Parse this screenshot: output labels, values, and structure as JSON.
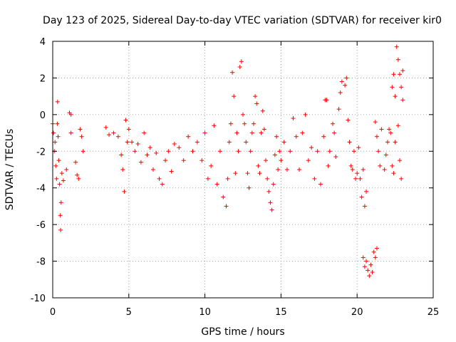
{
  "chart_data": {
    "type": "scatter",
    "title": "Day 123 of 2025, Sidereal Day-to-day VTEC variation (SDTVAR) for receiver kir0",
    "xlabel": "GPS time / hours",
    "ylabel": "SDTVAR / TECUs",
    "xlim": [
      0,
      25
    ],
    "ylim": [
      -10,
      4
    ],
    "xticks": [
      0,
      5,
      10,
      15,
      20,
      25
    ],
    "xtick_labels": [
      "0",
      "5",
      "10",
      "15",
      "20",
      "25"
    ],
    "yticks": [
      -10,
      -8,
      -6,
      -4,
      -2,
      0,
      2,
      4
    ],
    "ytick_labels": [
      "-10",
      "-8",
      "-6",
      "-4",
      "-2",
      "0",
      "2",
      "4"
    ],
    "grid": true,
    "marker": "+",
    "color": "#ff0000",
    "series": [
      {
        "name": "kir0",
        "points": [
          [
            0.0,
            -0.5
          ],
          [
            0.05,
            -1.0
          ],
          [
            0.1,
            -2.0
          ],
          [
            0.15,
            -1.5
          ],
          [
            0.2,
            -2.8
          ],
          [
            0.25,
            -3.5
          ],
          [
            0.3,
            -0.5
          ],
          [
            0.32,
            0.7
          ],
          [
            0.35,
            -1.2
          ],
          [
            0.4,
            -2.5
          ],
          [
            0.45,
            -3.8
          ],
          [
            0.5,
            -5.5
          ],
          [
            0.52,
            -6.3
          ],
          [
            0.55,
            -4.8
          ],
          [
            0.6,
            -3.2
          ],
          [
            0.7,
            -3.6
          ],
          [
            0.9,
            -3.0
          ],
          [
            1.1,
            0.1
          ],
          [
            1.2,
            0.0
          ],
          [
            1.2,
            -1.0
          ],
          [
            1.5,
            -2.6
          ],
          [
            1.6,
            -3.3
          ],
          [
            1.7,
            -3.5
          ],
          [
            1.8,
            -0.8
          ],
          [
            1.9,
            -1.2
          ],
          [
            2.0,
            -2.0
          ],
          [
            3.5,
            -0.7
          ],
          [
            3.7,
            -1.1
          ],
          [
            4.0,
            -1.0
          ],
          [
            4.3,
            -1.2
          ],
          [
            4.5,
            -2.2
          ],
          [
            4.6,
            -3.0
          ],
          [
            4.7,
            -4.2
          ],
          [
            4.8,
            -0.3
          ],
          [
            4.9,
            -1.5
          ],
          [
            5.0,
            -0.8
          ],
          [
            5.2,
            -1.5
          ],
          [
            5.4,
            -2.0
          ],
          [
            5.6,
            -1.6
          ],
          [
            5.8,
            -2.6
          ],
          [
            6.0,
            -1.0
          ],
          [
            6.2,
            -2.2
          ],
          [
            6.4,
            -1.8
          ],
          [
            6.6,
            -3.0
          ],
          [
            6.8,
            -2.1
          ],
          [
            7.0,
            -3.5
          ],
          [
            7.2,
            -3.8
          ],
          [
            7.4,
            -2.5
          ],
          [
            7.6,
            -2.0
          ],
          [
            7.8,
            -3.1
          ],
          [
            8.0,
            -1.6
          ],
          [
            8.3,
            -1.8
          ],
          [
            8.6,
            -2.5
          ],
          [
            8.9,
            -1.2
          ],
          [
            9.2,
            -2.0
          ],
          [
            9.5,
            -1.5
          ],
          [
            9.8,
            -2.5
          ],
          [
            10.0,
            -1.0
          ],
          [
            10.2,
            -3.5
          ],
          [
            10.4,
            -2.8
          ],
          [
            10.6,
            -0.6
          ],
          [
            10.8,
            -3.8
          ],
          [
            11.0,
            -2.0
          ],
          [
            11.2,
            -4.5
          ],
          [
            11.4,
            -5.0
          ],
          [
            11.5,
            -3.5
          ],
          [
            11.6,
            -1.5
          ],
          [
            11.7,
            -0.5
          ],
          [
            11.8,
            2.3
          ],
          [
            11.9,
            1.0
          ],
          [
            12.0,
            -3.2
          ],
          [
            12.1,
            -1.0
          ],
          [
            12.2,
            -2.0
          ],
          [
            12.3,
            2.6
          ],
          [
            12.4,
            2.9
          ],
          [
            12.5,
            0.0
          ],
          [
            12.6,
            -0.5
          ],
          [
            12.7,
            -1.5
          ],
          [
            12.8,
            -3.2
          ],
          [
            12.9,
            -4.0
          ],
          [
            13.0,
            -2.0
          ],
          [
            13.1,
            -1.0
          ],
          [
            13.2,
            -0.5
          ],
          [
            13.3,
            1.0
          ],
          [
            13.4,
            0.6
          ],
          [
            13.5,
            -2.8
          ],
          [
            13.6,
            -3.2
          ],
          [
            13.7,
            -1.0
          ],
          [
            13.8,
            0.2
          ],
          [
            13.9,
            -0.8
          ],
          [
            14.0,
            -2.5
          ],
          [
            14.1,
            -3.5
          ],
          [
            14.2,
            -4.2
          ],
          [
            14.3,
            -4.8
          ],
          [
            14.4,
            -5.2
          ],
          [
            14.5,
            -3.8
          ],
          [
            14.6,
            -2.2
          ],
          [
            14.7,
            -1.2
          ],
          [
            14.8,
            -3.0
          ],
          [
            14.9,
            -2.0
          ],
          [
            15.0,
            -2.5
          ],
          [
            15.2,
            -1.5
          ],
          [
            15.4,
            -3.0
          ],
          [
            15.6,
            -2.0
          ],
          [
            15.8,
            -0.2
          ],
          [
            16.0,
            -1.2
          ],
          [
            16.2,
            -3.0
          ],
          [
            16.4,
            -1.0
          ],
          [
            16.6,
            0.0
          ],
          [
            16.8,
            -2.5
          ],
          [
            17.0,
            -1.8
          ],
          [
            17.2,
            -3.5
          ],
          [
            17.4,
            -2.0
          ],
          [
            17.6,
            -3.8
          ],
          [
            17.8,
            -1.2
          ],
          [
            17.9,
            0.8
          ],
          [
            18.0,
            0.8
          ],
          [
            18.1,
            -2.8
          ],
          [
            18.2,
            -2.0
          ],
          [
            18.4,
            -0.5
          ],
          [
            18.5,
            -1.0
          ],
          [
            18.6,
            -2.3
          ],
          [
            18.8,
            0.3
          ],
          [
            18.9,
            1.2
          ],
          [
            19.0,
            1.8
          ],
          [
            19.2,
            1.6
          ],
          [
            19.3,
            2.0
          ],
          [
            19.4,
            -0.3
          ],
          [
            19.5,
            -1.5
          ],
          [
            19.6,
            -2.8
          ],
          [
            19.7,
            -3.0
          ],
          [
            19.8,
            -2.0
          ],
          [
            19.9,
            -3.5
          ],
          [
            20.0,
            -3.2
          ],
          [
            20.1,
            -1.8
          ],
          [
            20.2,
            -3.5
          ],
          [
            20.3,
            -4.5
          ],
          [
            20.4,
            -3.0
          ],
          [
            20.5,
            -5.0
          ],
          [
            20.6,
            -4.2
          ],
          [
            20.4,
            -7.8
          ],
          [
            20.5,
            -8.3
          ],
          [
            20.6,
            -8.0
          ],
          [
            20.7,
            -8.5
          ],
          [
            20.8,
            -8.8
          ],
          [
            20.9,
            -8.2
          ],
          [
            21.0,
            -8.6
          ],
          [
            21.1,
            -7.5
          ],
          [
            21.2,
            -7.8
          ],
          [
            21.3,
            -7.3
          ],
          [
            21.2,
            -0.4
          ],
          [
            21.3,
            -1.2
          ],
          [
            21.4,
            -2.0
          ],
          [
            21.5,
            -2.8
          ],
          [
            21.6,
            -0.8
          ],
          [
            21.8,
            -3.0
          ],
          [
            21.9,
            -2.2
          ],
          [
            22.0,
            -1.5
          ],
          [
            22.1,
            -0.8
          ],
          [
            22.2,
            -1.0
          ],
          [
            22.3,
            -2.8
          ],
          [
            22.4,
            -3.2
          ],
          [
            22.5,
            -1.5
          ],
          [
            22.6,
            3.7
          ],
          [
            22.7,
            3.0
          ],
          [
            22.8,
            2.2
          ],
          [
            22.9,
            1.5
          ],
          [
            23.0,
            0.8
          ],
          [
            23.0,
            2.4
          ],
          [
            22.9,
            -3.5
          ],
          [
            22.8,
            -2.5
          ],
          [
            22.7,
            -0.6
          ],
          [
            22.3,
            1.5
          ],
          [
            22.4,
            2.2
          ],
          [
            22.5,
            1.0
          ]
        ]
      }
    ]
  }
}
